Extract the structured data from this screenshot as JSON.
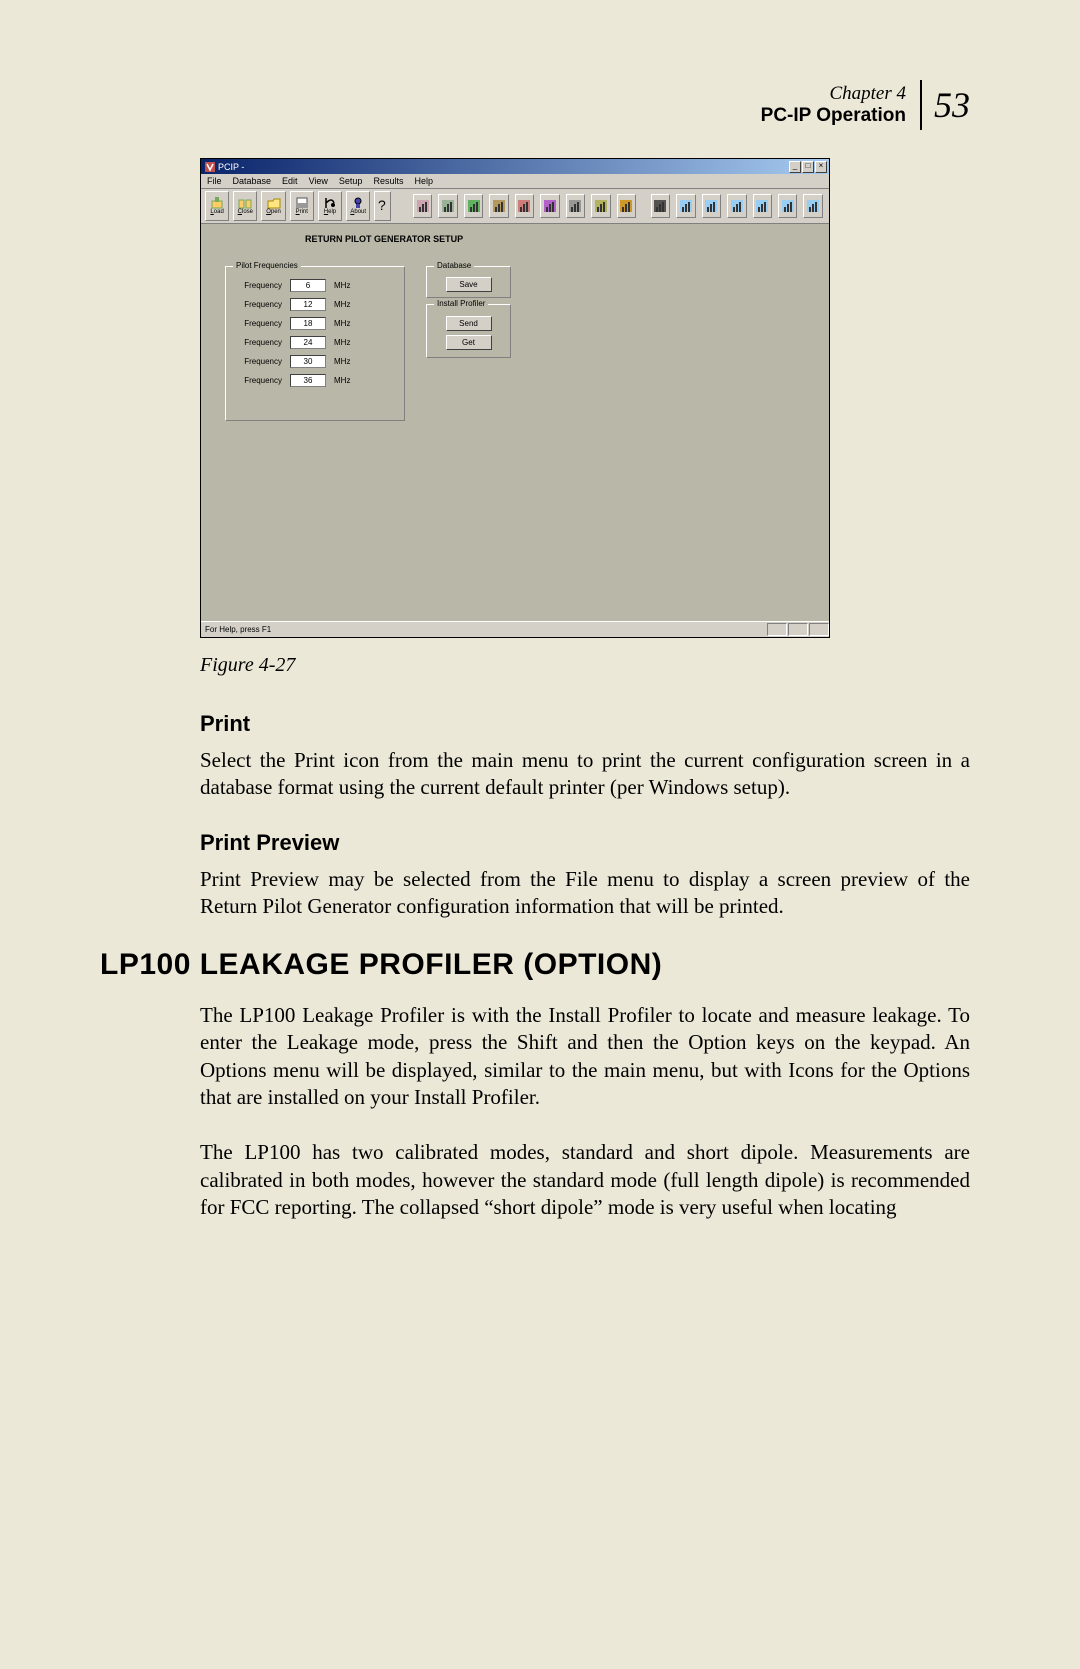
{
  "header": {
    "chapter": "Chapter 4",
    "title": "PC-IP Operation",
    "page_number": "53"
  },
  "screenshot": {
    "title_bar": {
      "app_name": "PCIP -"
    },
    "win_controls": {
      "min": "_",
      "max": "□",
      "close": "×"
    },
    "menu": [
      "File",
      "Database",
      "Edit",
      "View",
      "Setup",
      "Results",
      "Help"
    ],
    "toolbar1": [
      {
        "label": "Load",
        "name": "load-button"
      },
      {
        "label": "Close",
        "name": "close-file-button"
      },
      {
        "label": "Open",
        "name": "open-button"
      },
      {
        "label": "Print",
        "name": "print-button"
      },
      {
        "label": "Help",
        "name": "help-button"
      },
      {
        "label": "About",
        "name": "about-button"
      }
    ],
    "toolbar2_count": 16,
    "setup_title": "RETURN PILOT GENERATOR SETUP",
    "pilot_legend": "Pilot Frequencies",
    "freq_label": "Frequency",
    "freq_unit": "MHz",
    "frequencies": [
      "6",
      "12",
      "18",
      "24",
      "30",
      "36"
    ],
    "database_legend": "Database",
    "save_btn": "Save",
    "install_legend": "Install Profiler",
    "send_btn": "Send",
    "get_btn": "Get",
    "status_text": "For Help, press F1"
  },
  "figure_caption": "Figure 4-27",
  "sections": {
    "print": {
      "heading": "Print",
      "body": "Select the Print icon from the main menu to print the current configuration screen in a database format using the current default printer (per Windows setup)."
    },
    "preview": {
      "heading": "Print Preview",
      "body": "Print Preview may be selected from the File menu to display a screen preview of the Return Pilot Generator configuration information that will be printed."
    }
  },
  "main_heading": "LP100 LEAKAGE PROFILER (OPTION)",
  "paragraphs": {
    "p1": "The LP100 Leakage Profiler is with the Install Profiler to locate and measure leakage. To enter the Leakage mode, press the Shift and then the Option keys on the keypad. An Options menu will be displayed, similar to the main menu, but with Icons for the Options that are installed on your Install Profiler.",
    "p2": "The LP100 has two calibrated modes, standard and short dipole. Measurements are calibrated in both modes, however the standard mode (full length dipole) is recommended for FCC reporting. The collapsed “short dipole” mode is very useful when locating"
  },
  "colors": {
    "page_bg": "#ece8d8",
    "app_bg": "#b9b8a8",
    "chrome_bg": "#d4d0c8",
    "titlebar_grad_from": "#0a246a",
    "titlebar_grad_to": "#a6caf0"
  }
}
